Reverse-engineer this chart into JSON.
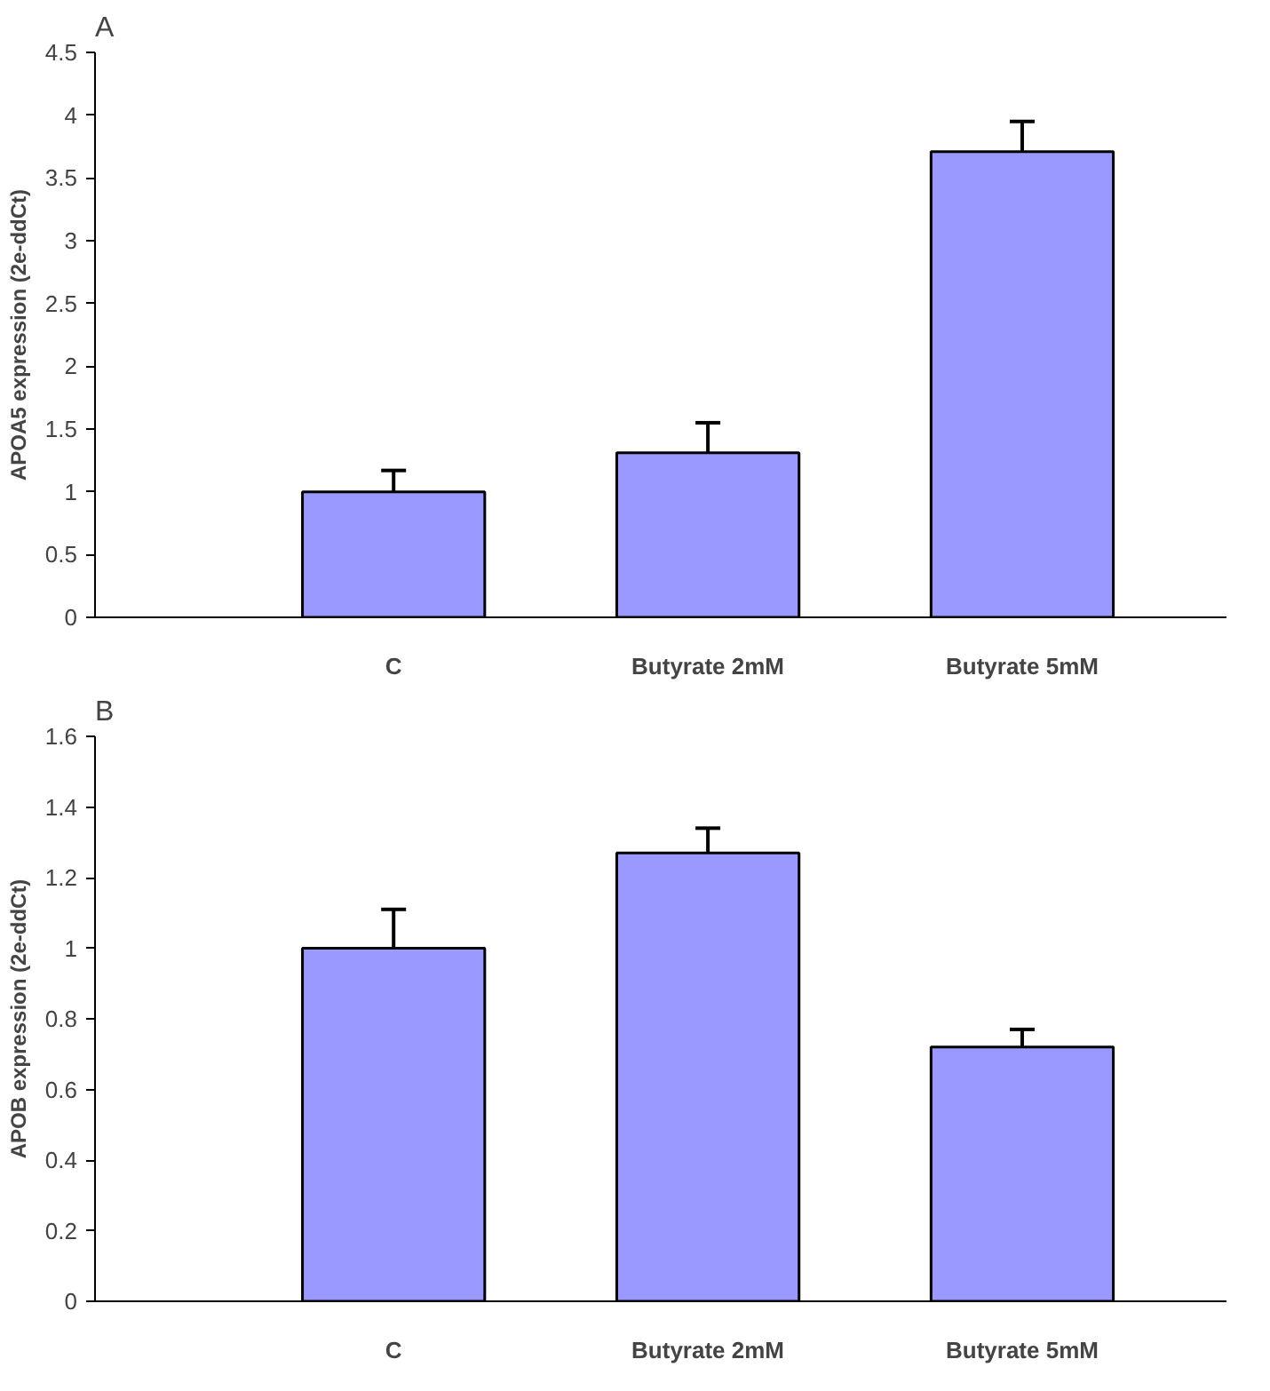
{
  "chart_data": [
    {
      "type": "bar",
      "title": "A",
      "ylabel": "APOA5 expression (2e-ddCt)",
      "categories": [
        "C",
        "Butyrate 2mM",
        "Butyrate 5mM"
      ],
      "values": [
        1.0,
        1.31,
        3.71
      ],
      "errors": [
        0.17,
        0.24,
        0.24
      ],
      "color": "#9999ff",
      "ylim": [
        0,
        4.5
      ],
      "yticks": [
        0,
        0.5,
        1,
        1.5,
        2,
        2.5,
        3,
        3.5,
        4,
        4.5
      ],
      "grid": false,
      "legend": false
    },
    {
      "type": "bar",
      "title": "B",
      "ylabel": "APOB expression (2e-ddCt)",
      "categories": [
        "C",
        "Butyrate 2mM",
        "Butyrate 5mM"
      ],
      "values": [
        1.0,
        1.27,
        0.72
      ],
      "errors": [
        0.11,
        0.07,
        0.05
      ],
      "color": "#9999ff",
      "ylim": [
        0,
        1.6
      ],
      "yticks": [
        0,
        0.2,
        0.4,
        0.6,
        0.8,
        1,
        1.2,
        1.4,
        1.6
      ],
      "grid": false,
      "legend": false
    }
  ]
}
